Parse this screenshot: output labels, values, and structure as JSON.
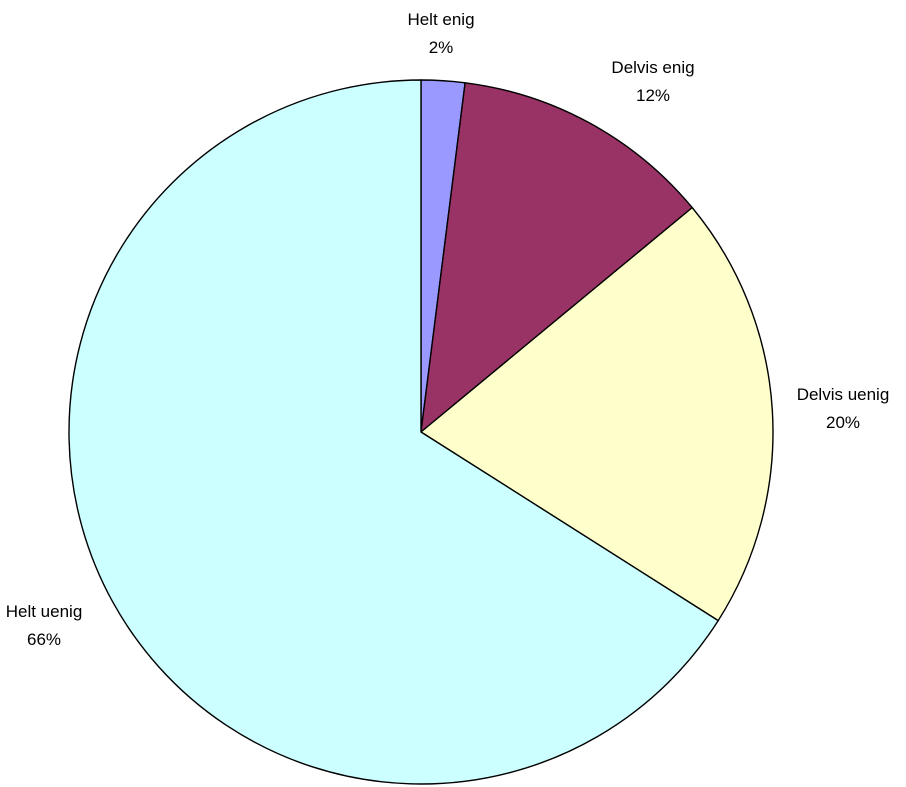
{
  "chart_data": {
    "type": "pie",
    "title": "",
    "start": "top",
    "direction": "clockwise",
    "slices": [
      {
        "category": "Helt enig",
        "value": 2,
        "label_pct": "2%",
        "color": "#9999FF"
      },
      {
        "category": "Delvis enig",
        "value": 12,
        "label_pct": "12%",
        "color": "#993366"
      },
      {
        "category": "Delvis uenig",
        "value": 20,
        "label_pct": "20%",
        "color": "#FFFFCC"
      },
      {
        "category": "Helt uenig",
        "value": 66,
        "label_pct": "66%",
        "color": "#CCFFFF"
      }
    ]
  }
}
